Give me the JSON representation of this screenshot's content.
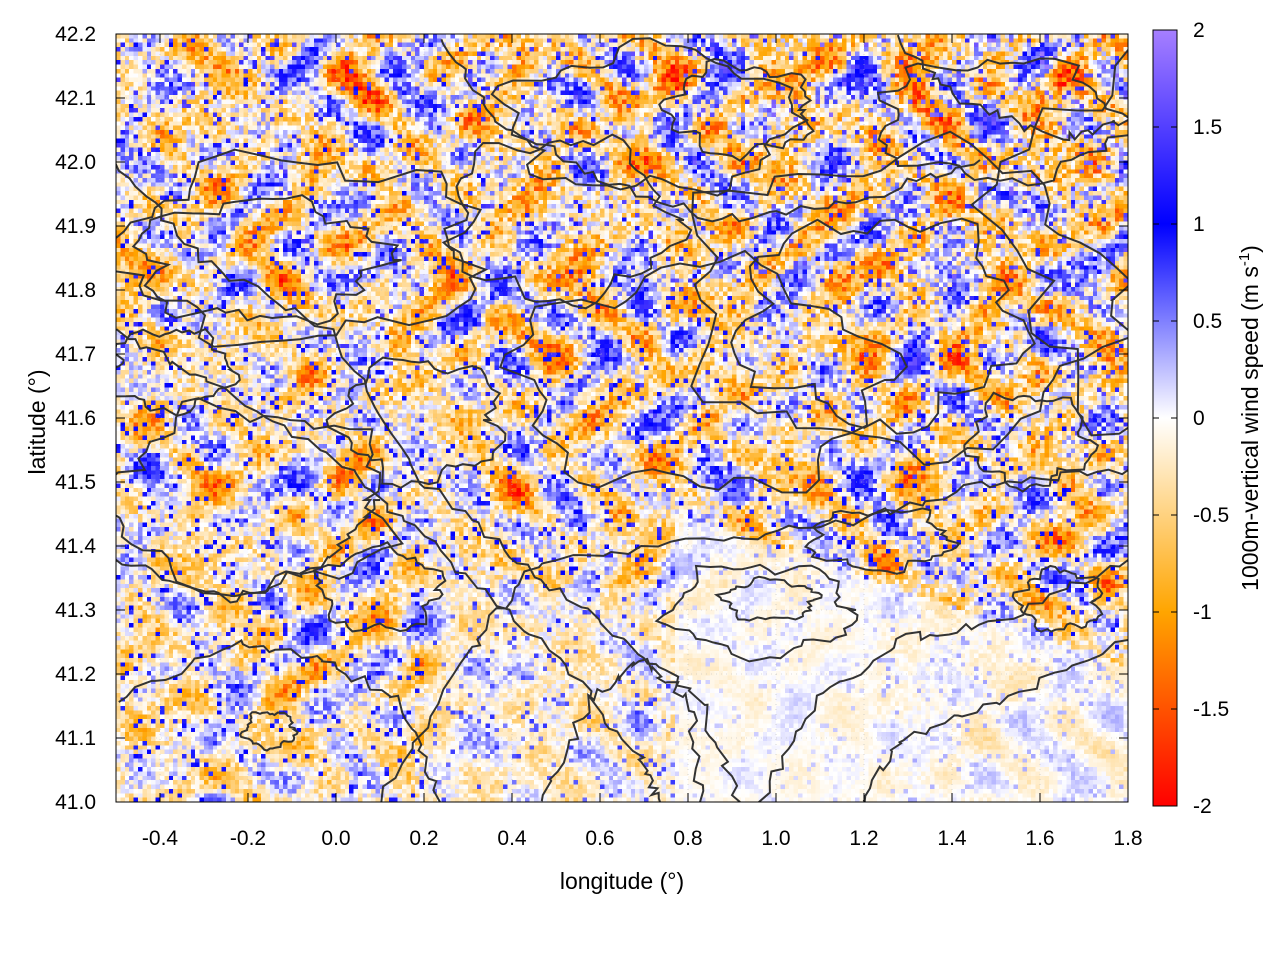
{
  "chart_data": {
    "type": "heatmap",
    "xlabel": "longitude (°)",
    "ylabel": "latitude (°)",
    "colorbar_label": "1000m-vertical wind speed (m s",
    "colorbar_label_sup": "-1",
    "colorbar_label_end": ")",
    "xlim": [
      -0.5,
      1.8
    ],
    "ylim": [
      41.0,
      42.2
    ],
    "x_ticks": [
      "-0.4",
      "-0.2",
      "0.0",
      "0.2",
      "0.4",
      "0.6",
      "0.8",
      "1.0",
      "1.2",
      "1.4",
      "1.6",
      "1.8"
    ],
    "y_ticks": [
      "41.0",
      "41.1",
      "41.2",
      "41.3",
      "41.4",
      "41.5",
      "41.6",
      "41.7",
      "41.8",
      "41.9",
      "42.0",
      "42.1",
      "42.2"
    ],
    "colorbar_range": [
      -2,
      2
    ],
    "colorbar_ticks": [
      "-2",
      "-1.5",
      "-1",
      "-0.5",
      "0",
      "0.5",
      "1",
      "1.5",
      "2"
    ],
    "colormap": [
      {
        "value": -2.0,
        "color": "#ff0000"
      },
      {
        "value": -1.0,
        "color": "#ffa500"
      },
      {
        "value": 0.0,
        "color": "#ffffff"
      },
      {
        "value": 1.0,
        "color": "#0000ff"
      },
      {
        "value": 2.0,
        "color": "#a67fff"
      }
    ],
    "contour_color": "#333333",
    "grid": true,
    "legend": "colorbar-right"
  }
}
